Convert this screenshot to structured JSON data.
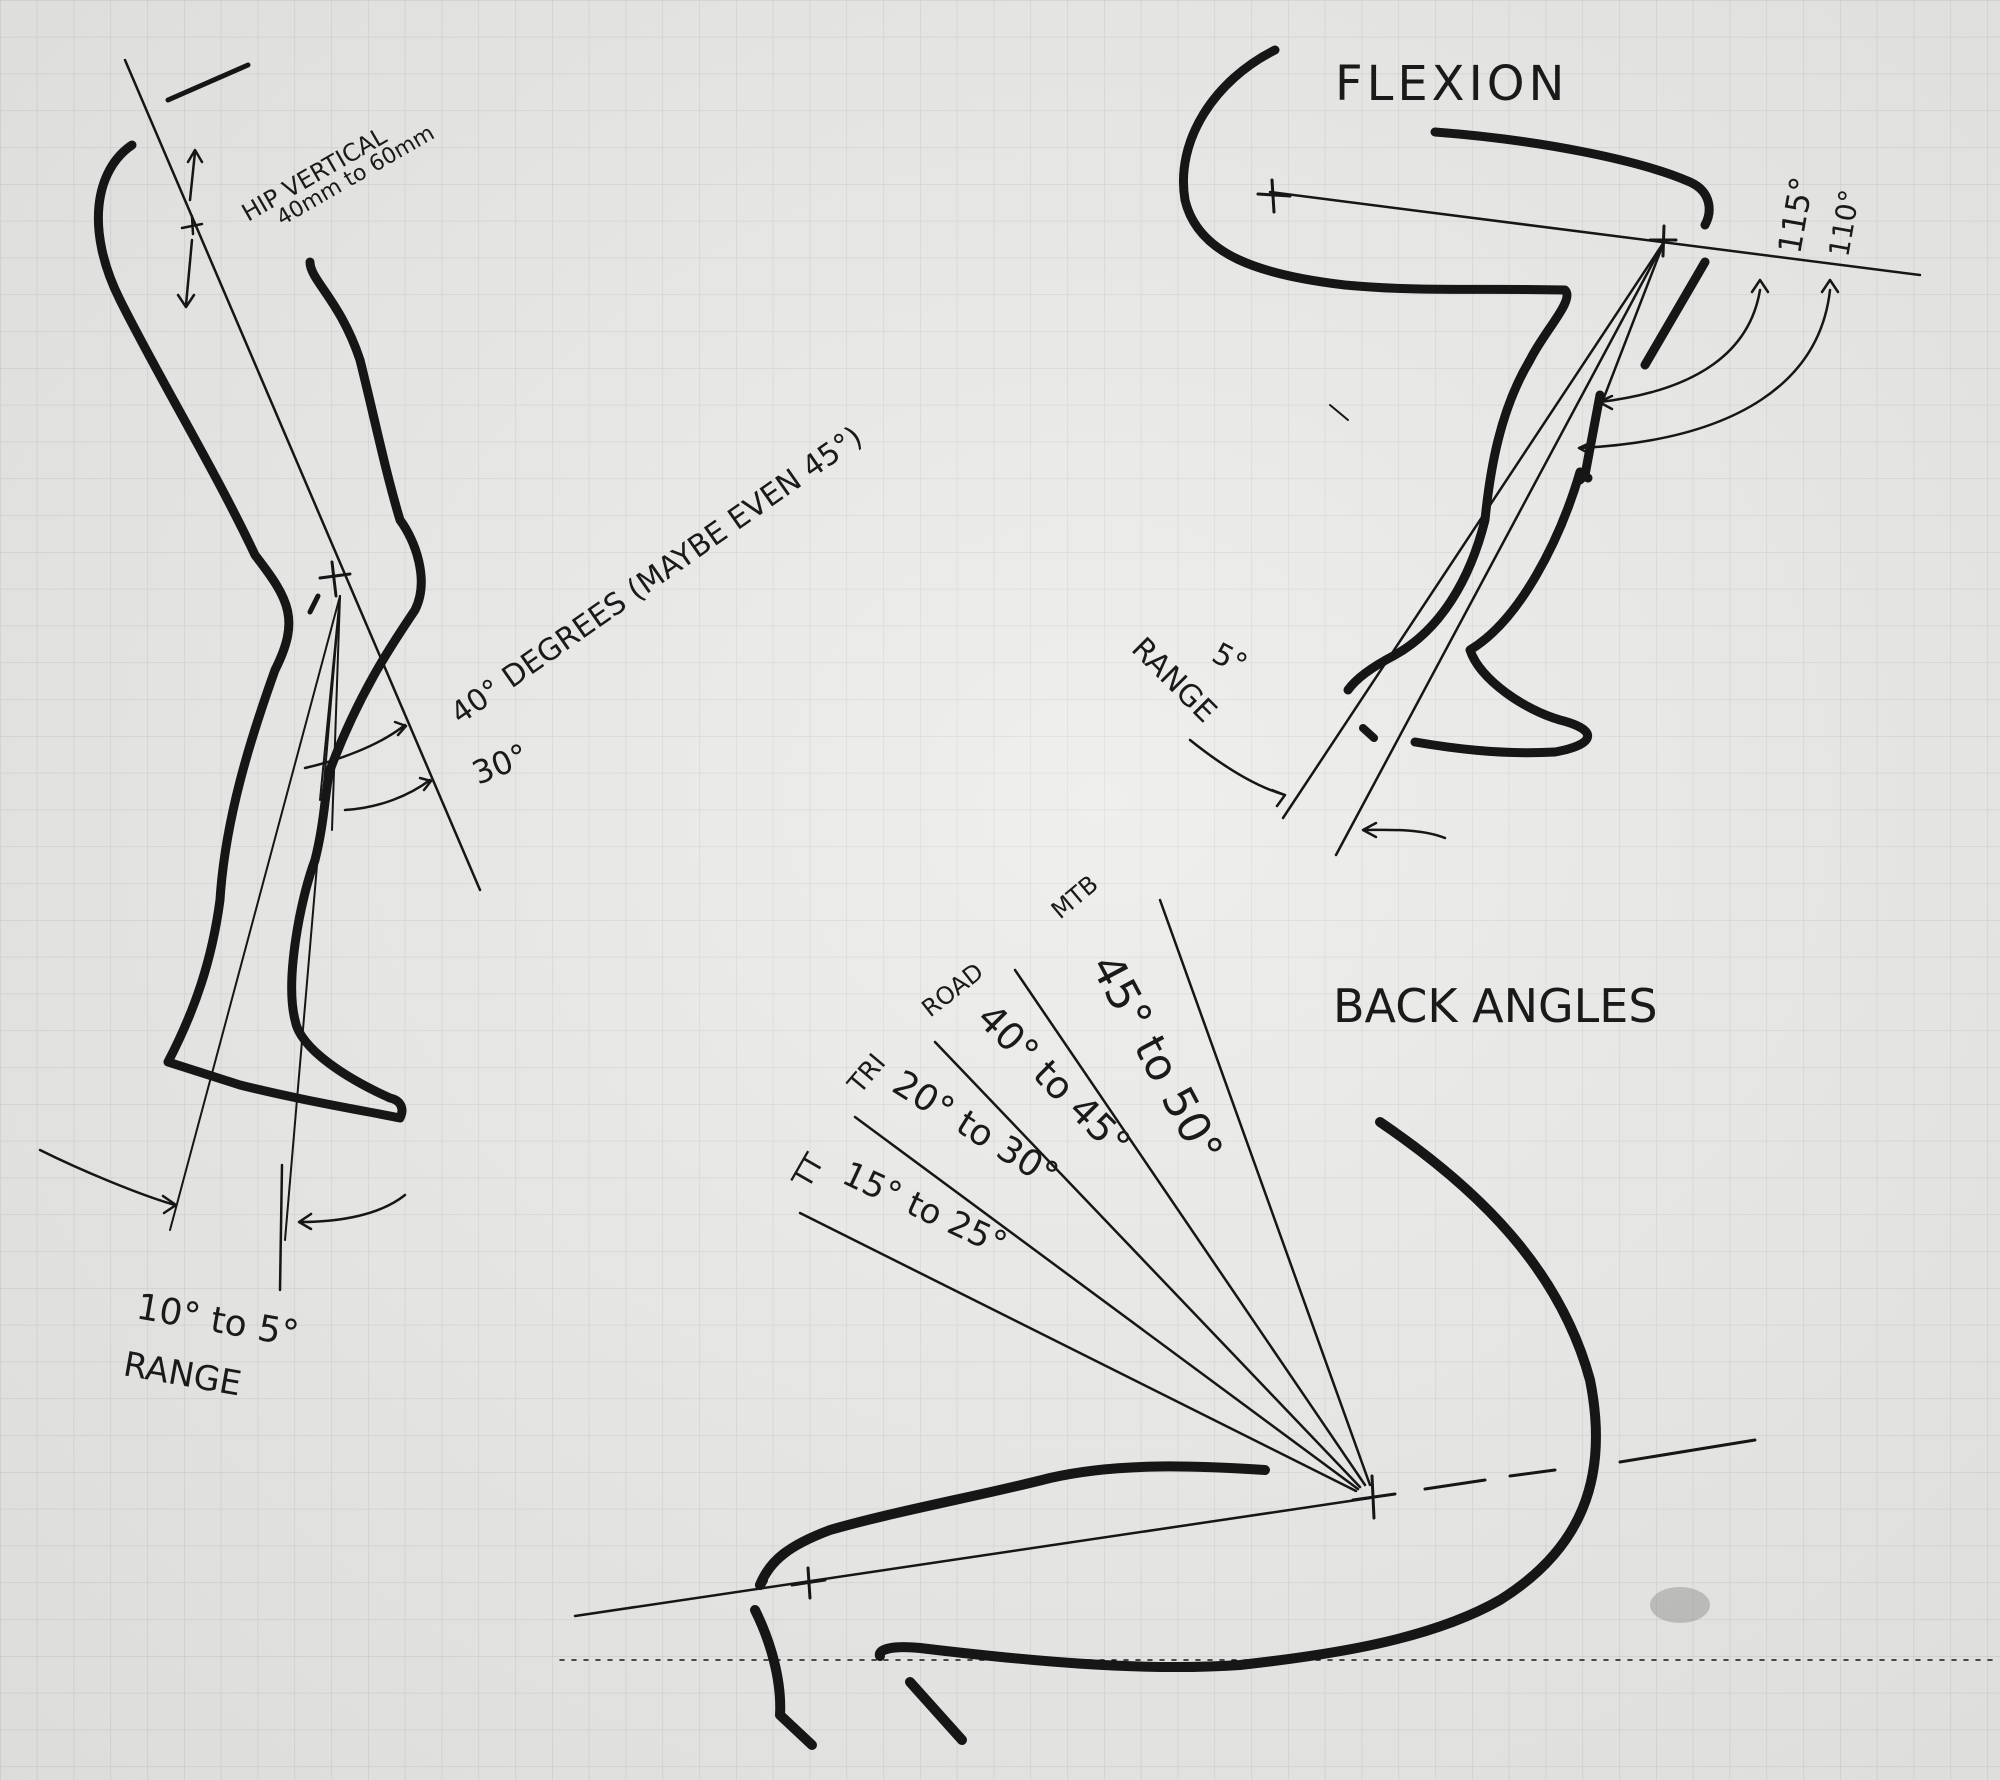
{
  "colors": {
    "paper": "#e9e9e7",
    "grid": "#b9b9b9",
    "ink": "#161616"
  },
  "texts": {
    "hip_vertical": "HIP VERTICAL",
    "hip_range": "40mm to 60mm",
    "degrees_40": "40° DEGREES (MAYBE EVEN 45°)",
    "degrees_30": "30°",
    "ankle_range_values": "10° to 5°",
    "ankle_range_word": "RANGE",
    "flexion_title": "FLEXION",
    "flexion_115": "115°",
    "flexion_110": "110°",
    "range_5": "5°",
    "range_word": "RANGE",
    "back_angles_title": "BACK ANGLES",
    "mtb": "MTB",
    "mtb_range": "45° to 50°",
    "road": "ROAD",
    "road_range": "40° to 45°",
    "tri": "TRI",
    "tri_range": "20° to 30°",
    "tt": "TT",
    "tt_range": "15° to 25°"
  }
}
